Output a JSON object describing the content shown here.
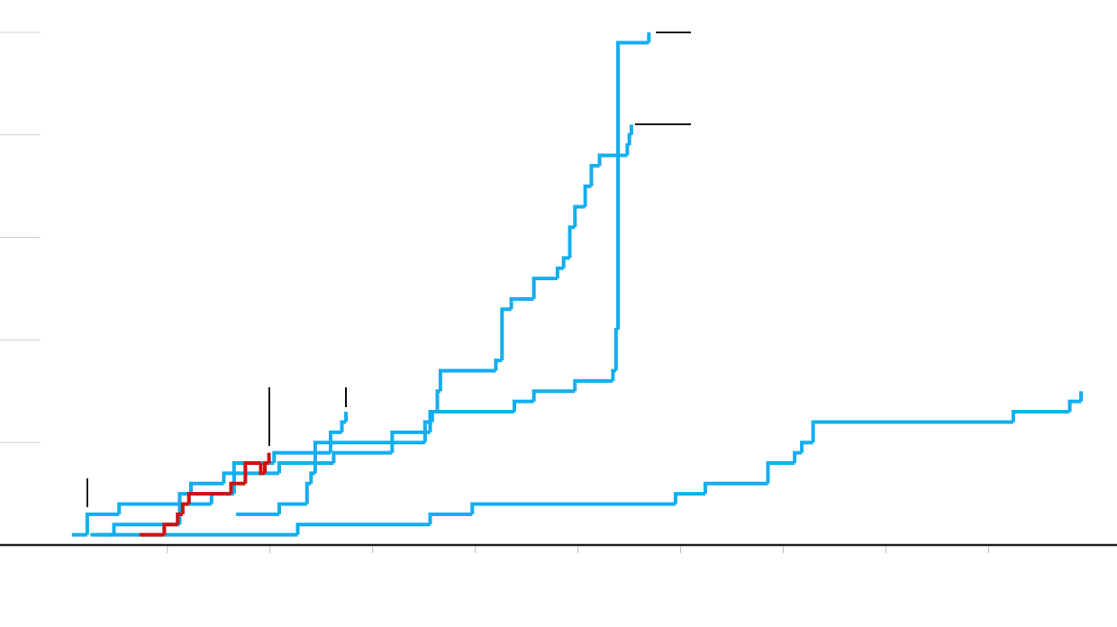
{
  "chart_data": {
    "type": "step",
    "xlim": [
      -0.63,
      10.25
    ],
    "ylim": [
      0,
      5
    ],
    "xticks": [
      1,
      2,
      3,
      4,
      5,
      6,
      7,
      8,
      9
    ],
    "yticks": [
      1,
      2,
      3,
      4,
      5
    ],
    "grid": true,
    "series": [
      {
        "color": "#12aef0",
        "x": [
          0.07,
          0.22,
          0.53,
          1.43,
          1.65,
          2.09,
          2.62,
          3.19,
          3.56,
          4.38,
          4.57,
          4.97,
          5.34,
          5.37,
          5.39,
          5.69
        ],
        "values": [
          0.1,
          0.3,
          0.4,
          0.5,
          0.7,
          0.8,
          0.9,
          1.1,
          1.3,
          1.4,
          1.5,
          1.6,
          1.7,
          2.1,
          4.9,
          5.0
        ]
      },
      {
        "color": "#12aef0",
        "x": [
          1.67,
          2.09,
          2.36,
          2.4,
          2.44,
          2.7,
          3.51,
          3.58,
          3.63,
          3.66,
          4.2,
          4.26,
          4.35,
          4.57,
          4.8,
          4.86,
          4.92,
          4.97,
          5.07,
          5.13,
          5.21,
          5.48,
          5.5,
          5.52
        ],
        "values": [
          0.3,
          0.4,
          0.6,
          0.7,
          1.0,
          1.0,
          1.2,
          1.3,
          1.5,
          1.7,
          1.8,
          2.3,
          2.4,
          2.6,
          2.7,
          2.8,
          3.1,
          3.3,
          3.5,
          3.7,
          3.8,
          3.9,
          4.0,
          4.1
        ]
      },
      {
        "color": "#12aef0",
        "x": [
          0.25,
          0.48,
          1.12,
          1.23,
          1.55,
          1.65,
          2.04,
          2.41,
          2.59,
          2.7,
          2.74
        ],
        "values": [
          0.1,
          0.2,
          0.5,
          0.6,
          0.7,
          0.8,
          0.9,
          0.9,
          1.1,
          1.2,
          1.3
        ]
      },
      {
        "color": "#12aef0",
        "x": [
          0.34,
          2.27,
          3.56,
          3.97,
          5.95,
          6.24,
          6.85,
          7.11,
          7.18,
          7.29,
          9.24,
          9.79,
          9.9
        ],
        "values": [
          0.1,
          0.2,
          0.3,
          0.4,
          0.5,
          0.6,
          0.8,
          0.9,
          1.0,
          1.2,
          1.3,
          1.4,
          1.5
        ]
      },
      {
        "color": "#cc1111",
        "x": [
          0.73,
          0.97,
          1.1,
          1.15,
          1.21,
          1.62,
          1.76,
          1.91,
          1.95,
          1.99
        ],
        "values": [
          0.1,
          0.2,
          0.3,
          0.4,
          0.5,
          0.6,
          0.8,
          0.7,
          0.8,
          0.9
        ]
      }
    ]
  }
}
